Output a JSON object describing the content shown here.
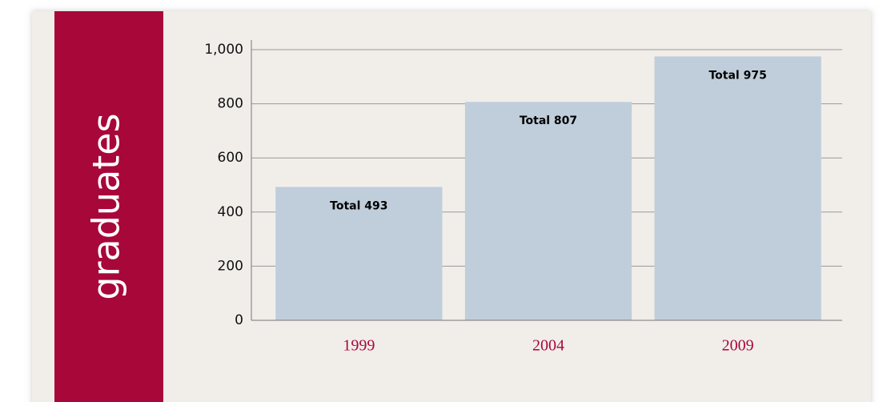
{
  "chart_data": {
    "type": "bar",
    "title": "graduates",
    "categories": [
      "1999",
      "2004",
      "2009"
    ],
    "values": [
      493,
      807,
      975
    ],
    "value_labels": [
      "Total 493",
      "Total 807",
      "Total 975"
    ],
    "color": "#c0cedb",
    "ylim": [
      0,
      1000
    ],
    "yticks": [
      0,
      200,
      400,
      600,
      800,
      {
        "value": 1000,
        "label": "1,000"
      }
    ],
    "grid": true
  }
}
